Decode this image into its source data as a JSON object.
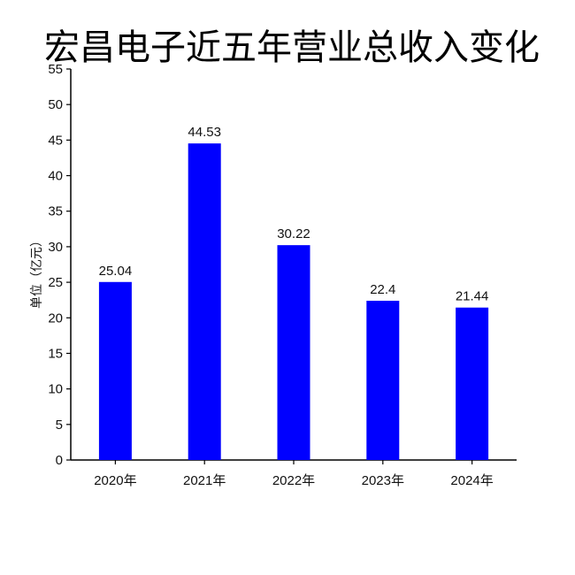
{
  "chart_data": {
    "type": "bar",
    "title": "宏昌电子近五年营业总收入变化",
    "ylabel": "单位（亿元）",
    "xlabel": "",
    "categories": [
      "2020年",
      "2021年",
      "2022年",
      "2023年",
      "2024年"
    ],
    "values": [
      25.04,
      44.53,
      30.22,
      22.4,
      21.44
    ],
    "value_labels": [
      "25.04",
      "44.53",
      "30.22",
      "22.4",
      "21.44"
    ],
    "ylim": [
      0,
      55
    ],
    "yticks": [
      "0",
      "5",
      "10",
      "15",
      "20",
      "25",
      "30",
      "35",
      "40",
      "45",
      "50",
      "55"
    ],
    "bar_color": "#0000FF",
    "grid": false,
    "legend": "none"
  }
}
